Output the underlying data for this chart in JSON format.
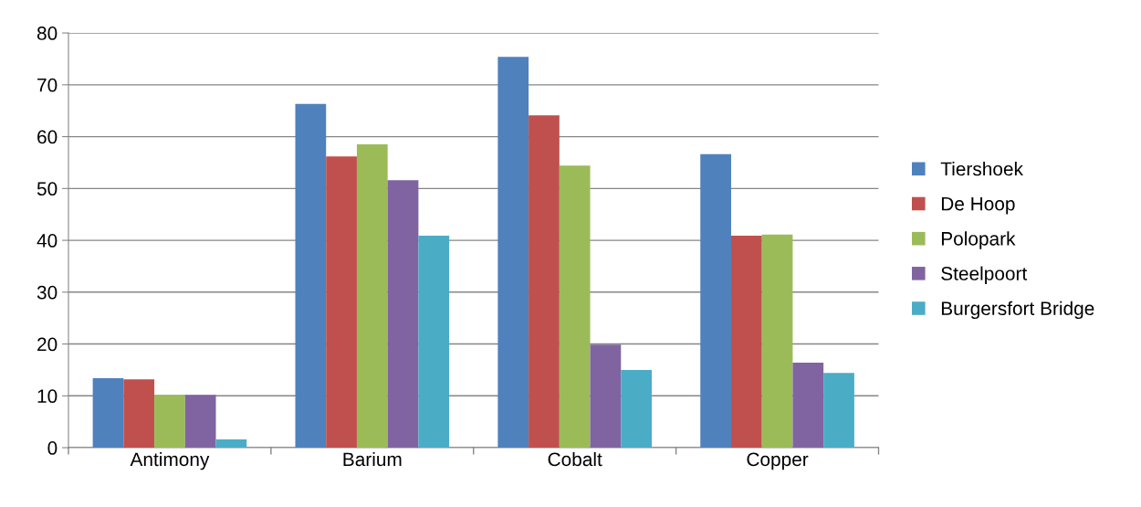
{
  "chart_data": {
    "type": "bar",
    "categories": [
      "Antimony",
      "Barium",
      "Cobalt",
      "Copper"
    ],
    "series": [
      {
        "name": "Tiershoek",
        "color": "#4f81bd",
        "values": [
          13.4,
          66.3,
          75.4,
          56.6
        ]
      },
      {
        "name": "De Hoop",
        "color": "#c0504d",
        "values": [
          13.2,
          56.2,
          64.1,
          40.9
        ]
      },
      {
        "name": "Polopark",
        "color": "#9bbb59",
        "values": [
          10.2,
          58.5,
          54.4,
          41.1
        ]
      },
      {
        "name": "Steelpoort",
        "color": "#8064a2",
        "values": [
          10.2,
          51.6,
          19.9,
          16.4
        ]
      },
      {
        "name": "Burgersfort Bridge",
        "color": "#4bacc6",
        "values": [
          1.6,
          40.9,
          15.0,
          14.4
        ]
      }
    ],
    "ylim": [
      0,
      80
    ],
    "yticks": [
      0,
      10,
      20,
      30,
      40,
      50,
      60,
      70,
      80
    ],
    "grid": "y",
    "legend": "right"
  }
}
